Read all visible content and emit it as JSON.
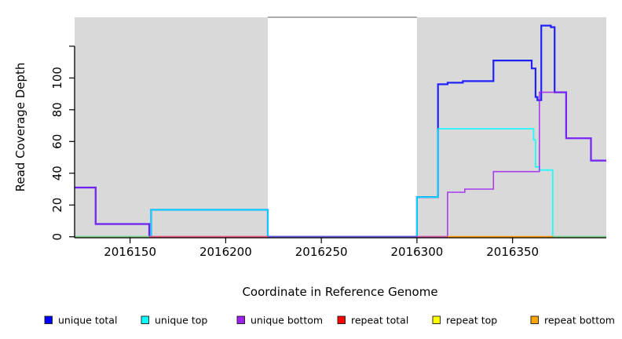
{
  "page": {
    "background": "#ffffff"
  },
  "chart_data": {
    "type": "line",
    "step_mode": "post",
    "title": "",
    "xlabel": "Coordinate in Reference Genome",
    "ylabel": "Read Coverage Depth",
    "xlim": [
      2016121,
      2016399
    ],
    "ylim": [
      0,
      138
    ],
    "grid": "off",
    "x_ticks": [
      {
        "value": 2016150,
        "label": "2016150"
      },
      {
        "value": 2016200,
        "label": "2016200"
      },
      {
        "value": 2016250,
        "label": "2016250"
      },
      {
        "value": 2016300,
        "label": "2016300"
      },
      {
        "value": 2016350,
        "label": "2016350"
      }
    ],
    "y_ticks": [
      {
        "value": 0,
        "label": "0"
      },
      {
        "value": 20,
        "label": "20"
      },
      {
        "value": 40,
        "label": "40"
      },
      {
        "value": 60,
        "label": "60"
      },
      {
        "value": 80,
        "label": "80"
      },
      {
        "value": 100,
        "label": "100"
      },
      {
        "value": 120,
        "label": ""
      }
    ],
    "panel_color": "#d9d9d9",
    "axis_color": "#000000",
    "shaded_regions": [
      {
        "from": 2016121,
        "to": 2016222
      },
      {
        "from": 2016300,
        "to": 2016399
      }
    ],
    "gap_top_border": {
      "from": 2016222,
      "to": 2016300,
      "color": "#8e8e8e"
    },
    "series": [
      {
        "name": "unique total",
        "color": "#0000FF",
        "steps": [
          [
            2016121,
            31
          ],
          [
            2016132,
            8
          ],
          [
            2016160,
            0
          ],
          [
            2016161,
            17
          ],
          [
            2016222,
            0
          ],
          [
            2016300,
            25
          ],
          [
            2016311,
            96
          ],
          [
            2016316,
            97
          ],
          [
            2016324,
            98
          ],
          [
            2016340,
            111
          ],
          [
            2016360,
            106
          ],
          [
            2016362,
            88
          ],
          [
            2016363,
            86
          ],
          [
            2016365,
            133
          ],
          [
            2016370,
            132
          ],
          [
            2016372,
            91
          ],
          [
            2016378,
            62
          ],
          [
            2016391,
            48
          ]
        ]
      },
      {
        "name": "unique top",
        "color": "#00FFFF",
        "steps": [
          [
            2016121,
            0
          ],
          [
            2016161,
            17
          ],
          [
            2016222,
            0
          ],
          [
            2016300,
            25
          ],
          [
            2016311,
            68
          ],
          [
            2016361,
            61
          ],
          [
            2016362,
            44
          ],
          [
            2016364,
            42
          ],
          [
            2016371,
            0
          ]
        ]
      },
      {
        "name": "unique bottom",
        "color": "#A020F0",
        "steps": [
          [
            2016121,
            31
          ],
          [
            2016132,
            8
          ],
          [
            2016160,
            0
          ],
          [
            2016316,
            28
          ],
          [
            2016325,
            30
          ],
          [
            2016340,
            41
          ],
          [
            2016364,
            91
          ],
          [
            2016378,
            62
          ],
          [
            2016391,
            48
          ]
        ]
      },
      {
        "name": "repeat total",
        "color": "#FF0000",
        "steps": [
          [
            2016121,
            0
          ]
        ]
      },
      {
        "name": "repeat top",
        "color": "#FFFF00",
        "steps": [
          [
            2016121,
            0
          ]
        ]
      },
      {
        "name": "repeat bottom",
        "color": "#FFA500",
        "steps": [
          [
            2016121,
            0
          ]
        ]
      }
    ],
    "baseline_segments": [
      {
        "from": 2016121,
        "to": 2016160,
        "color": "#82cc82"
      },
      {
        "from": 2016160,
        "to": 2016222,
        "color": "#e85570"
      },
      {
        "from": 2016222,
        "to": 2016300,
        "color": "#6655dd"
      },
      {
        "from": 2016300,
        "to": 2016316,
        "color": "#d04fa0"
      },
      {
        "from": 2016316,
        "to": 2016371,
        "color": "#ff9500"
      },
      {
        "from": 2016371,
        "to": 2016399,
        "color": "#82cc82"
      }
    ],
    "legend": {
      "position": "bottom",
      "items": [
        {
          "label": "unique total",
          "color": "#0000FF"
        },
        {
          "label": "unique top",
          "color": "#00FFFF"
        },
        {
          "label": "unique bottom",
          "color": "#A020F0"
        },
        {
          "label": "repeat total",
          "color": "#FF0000"
        },
        {
          "label": "repeat top",
          "color": "#FFFF00"
        },
        {
          "label": "repeat bottom",
          "color": "#FFA500"
        }
      ]
    }
  }
}
